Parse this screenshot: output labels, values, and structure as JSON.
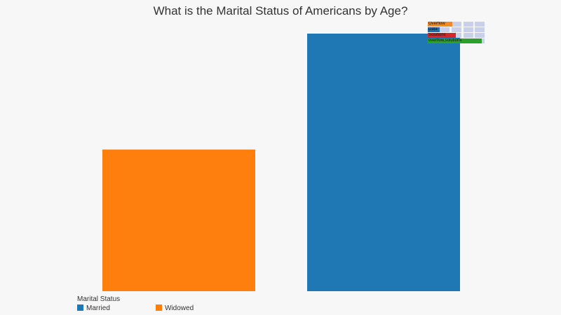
{
  "chart_data": {
    "type": "bar",
    "title": "What is the Marital Status of Americans by Age?",
    "categories": [
      "Widowed",
      "Married"
    ],
    "values": [
      0.55,
      1.0
    ],
    "colors": [
      "#ff7f0e",
      "#1f77b4"
    ],
    "ylim": [
      0,
      1.0
    ],
    "grid": false,
    "legend": {
      "title": "Marital Status",
      "placement": "bottom-left",
      "entries": [
        {
          "label": "Married",
          "color": "#1f77b4"
        },
        {
          "label": "Widowed",
          "color": "#ff7f0e"
        }
      ]
    }
  },
  "overlay": {
    "rows": [
      {
        "label": "Overflow",
        "color": "#f08a24",
        "fill": 0.41
      },
      {
        "label": "Data",
        "color": "#1f6fb4",
        "fill": 0.19
      },
      {
        "label": "Solutions",
        "color": "#d62728",
        "fill": 0.47
      },
      {
        "label": "overflow,solutions",
        "color": "#2ca02c",
        "fill": 0.93
      }
    ]
  }
}
